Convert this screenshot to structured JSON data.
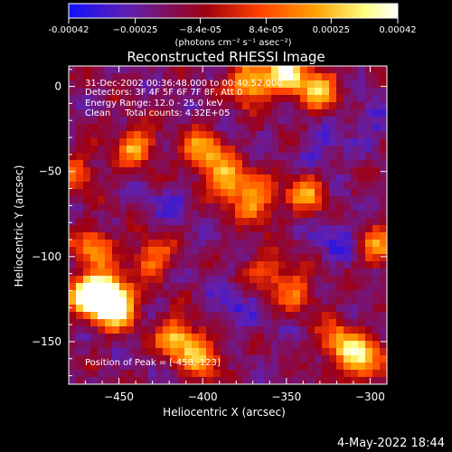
{
  "chart_data": {
    "type": "heatmap",
    "title": "Reconstructed RHESSI Image",
    "xlabel": "Heliocentric X (arcsec)",
    "ylabel": "Heliocentric Y (arcsec)",
    "xlim": [
      -480,
      -290
    ],
    "ylim": [
      -175,
      12
    ],
    "xticks": [
      -450,
      -400,
      -350,
      -300
    ],
    "xtick_labels": [
      "−450",
      "−400",
      "−350",
      "−300"
    ],
    "yticks": [
      0,
      -50,
      -100,
      -150
    ],
    "ytick_labels": [
      "0",
      "−50",
      "−100",
      "−150"
    ],
    "colorbar": {
      "min": -0.00042,
      "max": 0.00042,
      "ticks": [
        -0.00042,
        -0.00025,
        -8.4e-05,
        8.4e-05,
        0.00025,
        0.00042
      ],
      "tick_labels": [
        "-0.00042",
        "−0.00025",
        "−8.4e-05",
        "8.4e-05",
        "0.00025",
        "0.00042"
      ],
      "colors": [
        "#1010ff",
        "#6020b0",
        "#a00010",
        "#ff4000",
        "#ffa000",
        "#ffff80",
        "#ffffff"
      ]
    },
    "annotations": [
      "31-Dec-2002 00:36:48.000 to 00:40:52.000",
      "Detectors: 3F 4F 5F 6F 7F 8F, Att 0",
      "Energy Range: 12.0 - 25.0 keV",
      "Clean     Total counts: 4.32E+05"
    ],
    "peak_label": "Position of Peak = [-458,-123]",
    "peak": [
      -458,
      -123
    ],
    "grid": false,
    "hotspots": [
      {
        "x": -458,
        "y": -123,
        "v": 1.0
      },
      {
        "x": -452,
        "y": -130,
        "v": 0.9
      },
      {
        "x": -470,
        "y": -122,
        "v": 0.75
      },
      {
        "x": -415,
        "y": -148,
        "v": 0.7
      },
      {
        "x": -400,
        "y": -160,
        "v": 0.55
      },
      {
        "x": -350,
        "y": 8,
        "v": 0.85
      },
      {
        "x": -372,
        "y": 2,
        "v": 0.75
      },
      {
        "x": -330,
        "y": -2,
        "v": 0.65
      },
      {
        "x": -440,
        "y": -35,
        "v": 0.6
      },
      {
        "x": -400,
        "y": -38,
        "v": 0.65
      },
      {
        "x": -385,
        "y": -55,
        "v": 0.7
      },
      {
        "x": -368,
        "y": -68,
        "v": 0.6
      },
      {
        "x": -338,
        "y": -62,
        "v": 0.55
      },
      {
        "x": -360,
        "y": -110,
        "v": 0.6
      },
      {
        "x": -345,
        "y": -120,
        "v": 0.55
      },
      {
        "x": -305,
        "y": -160,
        "v": 0.8
      },
      {
        "x": -320,
        "y": -150,
        "v": 0.55
      },
      {
        "x": -465,
        "y": -95,
        "v": 0.55
      },
      {
        "x": -430,
        "y": -100,
        "v": 0.5
      },
      {
        "x": -475,
        "y": -50,
        "v": 0.4
      },
      {
        "x": -295,
        "y": -95,
        "v": 0.5
      }
    ],
    "coldspots": [
      {
        "x": -355,
        "y": -115,
        "v": 0.9
      },
      {
        "x": -320,
        "y": -90,
        "v": 0.7
      },
      {
        "x": -330,
        "y": -40,
        "v": 0.75
      },
      {
        "x": -300,
        "y": -20,
        "v": 0.6
      },
      {
        "x": -380,
        "y": -130,
        "v": 0.55
      },
      {
        "x": -420,
        "y": -70,
        "v": 0.5
      }
    ]
  },
  "footer": {
    "timestamp": "4-May-2022 18:44"
  },
  "colorbar_unit": "(photons cm⁻² s⁻¹ asec⁻²)"
}
